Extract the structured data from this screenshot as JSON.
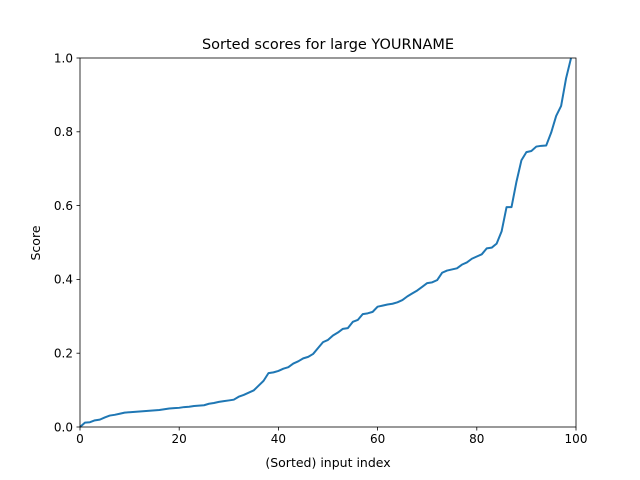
{
  "chart_data": {
    "type": "line",
    "title": "Sorted scores for large YOURNAME",
    "xlabel": "(Sorted) input index",
    "ylabel": "Score",
    "xlim": [
      0,
      100
    ],
    "ylim": [
      0,
      1.0
    ],
    "grid": false,
    "xticks": [
      0,
      20,
      40,
      60,
      80,
      100
    ],
    "xtick_labels": [
      "0",
      "20",
      "40",
      "60",
      "80",
      "100"
    ],
    "yticks": [
      0.0,
      0.2,
      0.4,
      0.6,
      0.8,
      1.0
    ],
    "ytick_labels": [
      "0.0",
      "0.2",
      "0.4",
      "0.6",
      "0.8",
      "1.0"
    ],
    "series": [
      {
        "color": "#1f77b4",
        "x": [
          0,
          1,
          2,
          3,
          4,
          5,
          6,
          7,
          8,
          9,
          10,
          11,
          12,
          13,
          14,
          15,
          16,
          17,
          18,
          19,
          20,
          21,
          22,
          23,
          24,
          25,
          26,
          27,
          28,
          29,
          30,
          31,
          32,
          33,
          34,
          35,
          36,
          37,
          38,
          39,
          40,
          41,
          42,
          43,
          44,
          45,
          46,
          47,
          48,
          49,
          50,
          51,
          52,
          53,
          54,
          55,
          56,
          57,
          58,
          59,
          60,
          61,
          62,
          63,
          64,
          65,
          66,
          67,
          68,
          69,
          70,
          71,
          72,
          73,
          74,
          75,
          76,
          77,
          78,
          79,
          80,
          81,
          82,
          83,
          84,
          85,
          86,
          87,
          88,
          89,
          90,
          91,
          92,
          93,
          94,
          95,
          96,
          97,
          98,
          99
        ],
        "values": [
          0.0,
          0.012,
          0.013,
          0.018,
          0.02,
          0.026,
          0.031,
          0.033,
          0.036,
          0.039,
          0.04,
          0.041,
          0.042,
          0.043,
          0.044,
          0.045,
          0.046,
          0.048,
          0.05,
          0.051,
          0.052,
          0.054,
          0.055,
          0.057,
          0.058,
          0.059,
          0.063,
          0.065,
          0.068,
          0.07,
          0.072,
          0.074,
          0.082,
          0.087,
          0.093,
          0.099,
          0.112,
          0.125,
          0.146,
          0.148,
          0.152,
          0.158,
          0.162,
          0.172,
          0.178,
          0.186,
          0.19,
          0.198,
          0.214,
          0.23,
          0.236,
          0.248,
          0.256,
          0.266,
          0.268,
          0.285,
          0.29,
          0.306,
          0.308,
          0.312,
          0.326,
          0.329,
          0.332,
          0.334,
          0.338,
          0.344,
          0.354,
          0.362,
          0.37,
          0.38,
          0.39,
          0.392,
          0.398,
          0.418,
          0.424,
          0.427,
          0.43,
          0.44,
          0.446,
          0.456,
          0.462,
          0.468,
          0.484,
          0.486,
          0.497,
          0.53,
          0.596,
          0.596,
          0.665,
          0.723,
          0.745,
          0.748,
          0.76,
          0.762,
          0.763,
          0.798,
          0.843,
          0.87,
          0.945,
          1.0
        ]
      }
    ]
  }
}
